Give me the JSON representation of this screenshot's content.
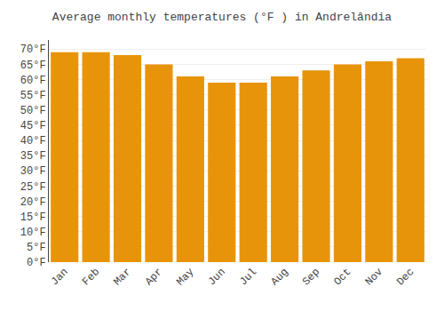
{
  "chart_data": {
    "type": "bar",
    "title": "Average monthly temperatures (°F ) in Andrelândia",
    "categories": [
      "Jan",
      "Feb",
      "Mar",
      "Apr",
      "May",
      "Jun",
      "Jul",
      "Aug",
      "Sep",
      "Oct",
      "Nov",
      "Dec"
    ],
    "values": [
      69,
      69,
      68,
      65,
      61,
      59,
      59,
      61,
      63,
      65,
      66,
      67
    ],
    "color": "#E8940A",
    "ylim": [
      0,
      73
    ],
    "yticks": [
      {
        "value": 0,
        "label": "0°F"
      },
      {
        "value": 5,
        "label": "5°F"
      },
      {
        "value": 10,
        "label": "10°F"
      },
      {
        "value": 15,
        "label": "15°F"
      },
      {
        "value": 20,
        "label": "20°F"
      },
      {
        "value": 25,
        "label": "25°F"
      },
      {
        "value": 30,
        "label": "30°F"
      },
      {
        "value": 35,
        "label": "35°F"
      },
      {
        "value": 40,
        "label": "40°F"
      },
      {
        "value": 45,
        "label": "45°F"
      },
      {
        "value": 50,
        "label": "50°F"
      },
      {
        "value": 55,
        "label": "55°F"
      },
      {
        "value": 60,
        "label": "60°F"
      },
      {
        "value": 65,
        "label": "65°F"
      },
      {
        "value": 70,
        "label": "70°F"
      }
    ],
    "grid": true
  }
}
